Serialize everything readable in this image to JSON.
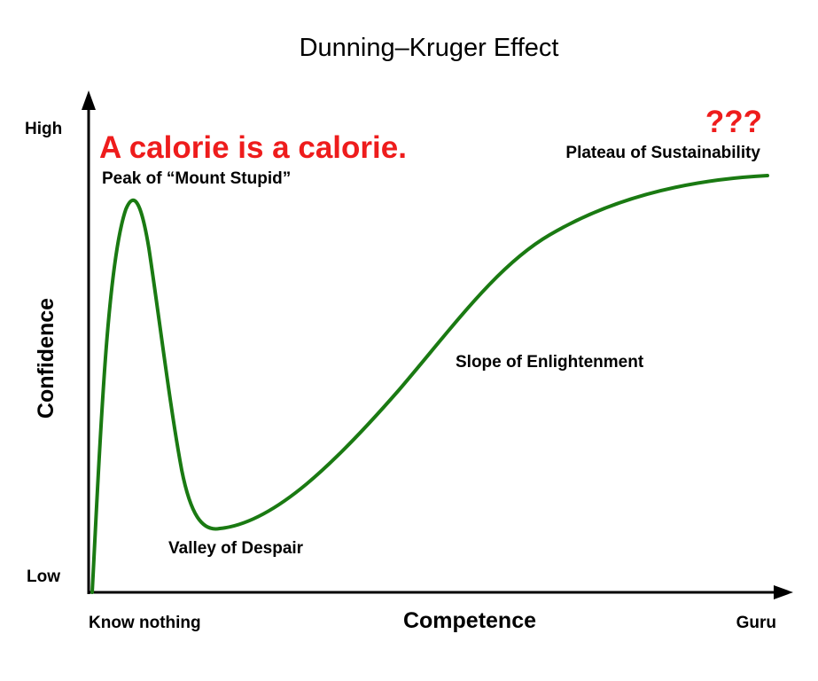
{
  "title": "Dunning–Kruger Effect",
  "axes": {
    "y_label": "Confidence",
    "x_label": "Competence",
    "y_high": "High",
    "y_low": "Low",
    "x_start": "Know nothing",
    "x_end": "Guru"
  },
  "stages": {
    "peak": "Peak of “Mount Stupid”",
    "valley": "Valley of Despair",
    "slope": "Slope of Enlightenment",
    "plateau": "Plateau of Sustainability"
  },
  "annotations": {
    "callout": "A calorie is a calorie.",
    "question_marks": "???"
  },
  "colors": {
    "curve": "#1a7a12",
    "annotation": "#ee1c1c",
    "axis": "#000000",
    "text": "#000000"
  }
}
